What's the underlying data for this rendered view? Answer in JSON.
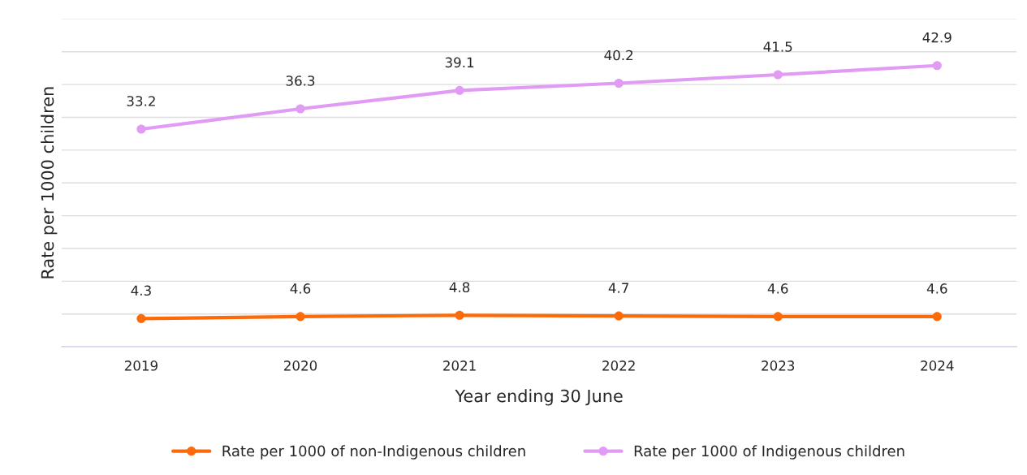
{
  "chart_data": {
    "type": "line",
    "xlabel": "Year ending 30 June",
    "ylabel": "Rate per 1000 children",
    "categories": [
      "2019",
      "2020",
      "2021",
      "2022",
      "2023",
      "2024"
    ],
    "series": [
      {
        "name": "Rate per 1000 of non-Indigenous children",
        "color": "#fc6a0a",
        "values": [
          4.3,
          4.6,
          4.8,
          4.7,
          4.6,
          4.6
        ]
      },
      {
        "name": "Rate per 1000 of Indigenous children",
        "color": "#e29bf5",
        "values": [
          33.2,
          36.3,
          39.1,
          40.2,
          41.5,
          42.9
        ]
      }
    ],
    "ylim": [
      0,
      50
    ],
    "yticks": [
      {
        "value": 0,
        "label": null
      },
      {
        "value": 5,
        "label": null
      },
      {
        "value": 10,
        "label": null
      },
      {
        "value": 15,
        "label": null
      },
      {
        "value": 20,
        "label": null
      },
      {
        "value": 25,
        "label": null
      },
      {
        "value": 30,
        "label": null
      },
      {
        "value": 35,
        "label": null
      },
      {
        "value": 40,
        "label": null
      },
      {
        "value": 45,
        "label": null
      },
      {
        "value": 50,
        "label": null
      }
    ],
    "tick_labels": "x",
    "grid": "y",
    "legend": "bottom",
    "marker": "circle",
    "line_style": "solid",
    "data_labels": true
  }
}
